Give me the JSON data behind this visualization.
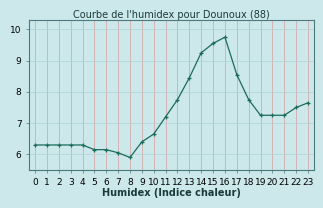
{
  "x": [
    0,
    1,
    2,
    3,
    4,
    5,
    6,
    7,
    8,
    9,
    10,
    11,
    12,
    13,
    14,
    15,
    16,
    17,
    18,
    19,
    20,
    21,
    22,
    23
  ],
  "y": [
    6.3,
    6.3,
    6.3,
    6.3,
    6.3,
    6.15,
    6.15,
    6.05,
    5.9,
    6.4,
    6.65,
    7.2,
    7.75,
    8.45,
    9.25,
    9.55,
    9.75,
    8.55,
    7.75,
    7.25,
    7.25,
    7.25,
    7.5,
    7.65
  ],
  "title": "Courbe de l'humidex pour Dounoux (88)",
  "xlabel": "Humidex (Indice chaleur)",
  "ylabel": "",
  "xlim": [
    -0.5,
    23.5
  ],
  "ylim": [
    5.5,
    10.3
  ],
  "yticks": [
    6,
    7,
    8,
    9,
    10
  ],
  "line_color": "#1a6b5a",
  "marker_color": "#1a6b5a",
  "bg_color": "#cce8ea",
  "grid_color": "#aed4d8",
  "grid_color_red": "#d4a0a0",
  "title_fontsize": 7,
  "label_fontsize": 7,
  "tick_fontsize": 6.5
}
